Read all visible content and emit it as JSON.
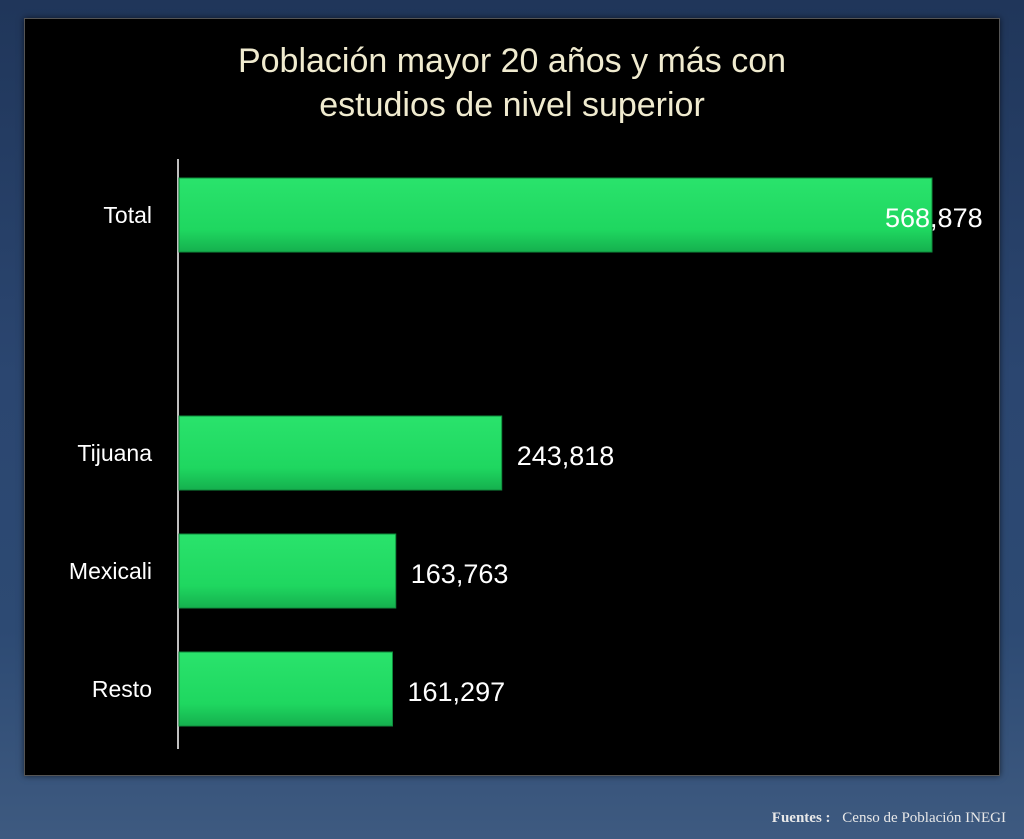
{
  "chart_data": {
    "type": "bar",
    "orientation": "horizontal",
    "title": "Población mayor  20 años y más con\nestudios de nivel superior",
    "categories": [
      "Total",
      "Tijuana",
      "Mexicali",
      "Resto"
    ],
    "values": [
      568878,
      243818,
      163763,
      161297
    ],
    "value_labels": [
      "568,878",
      "243,818",
      "163,763",
      "161,297"
    ],
    "xlim": [
      0,
      568878
    ],
    "grid": false,
    "legend": "none"
  },
  "footer": {
    "label": "Fuentes :",
    "source": "Censo de Población  INEGI"
  },
  "colors": {
    "bar": "#1fd760",
    "bar_dark": "#14a84a",
    "title": "#f0ebcf",
    "labels": "#ffffff",
    "background": "#000000"
  }
}
